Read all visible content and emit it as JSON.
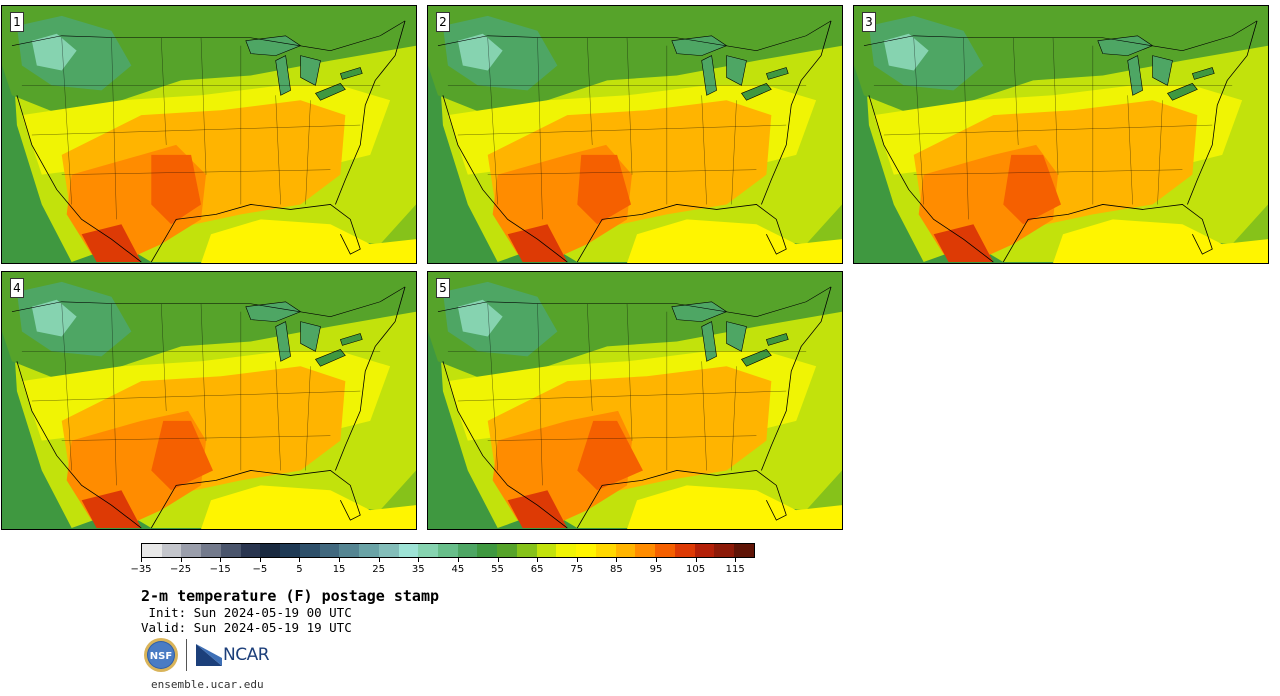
{
  "figure": {
    "title": "2-m temperature (F) postage stamp",
    "init_text": " Init: Sun 2024-05-19 00 UTC",
    "valid_text": "Valid: Sun 2024-05-19 19 UTC",
    "footer_url": "ensemble.ucar.edu",
    "logos": {
      "nsf": "NSF",
      "ncar": "NCAR"
    }
  },
  "panels": [
    {
      "label": "1"
    },
    {
      "label": "2"
    },
    {
      "label": "3"
    },
    {
      "label": "4"
    },
    {
      "label": "5"
    }
  ],
  "colorbar": {
    "units": "F",
    "min": -35,
    "max": 120,
    "step": 5,
    "colors": [
      "#e8e8e8",
      "#c4c6cc",
      "#9a9eab",
      "#737a8c",
      "#4a556c",
      "#2a3650",
      "#1a2a40",
      "#1f3a55",
      "#2e506a",
      "#41687e",
      "#558592",
      "#6aa3a6",
      "#83bdb9",
      "#9ee3d6",
      "#86d3b0",
      "#68be8a",
      "#4ea664",
      "#3f9840",
      "#56a32a",
      "#86c21a",
      "#c2e20c",
      "#f0f404",
      "#fff500",
      "#ffd800",
      "#ffb400",
      "#ff8c00",
      "#f56000",
      "#dd3a05",
      "#b32008",
      "#8c1a08",
      "#5f1406"
    ],
    "tick_labels": [
      "−35",
      "−25",
      "−15",
      "−5",
      "5",
      "15",
      "25",
      "35",
      "45",
      "55",
      "65",
      "75",
      "85",
      "95",
      "105",
      "115"
    ]
  }
}
